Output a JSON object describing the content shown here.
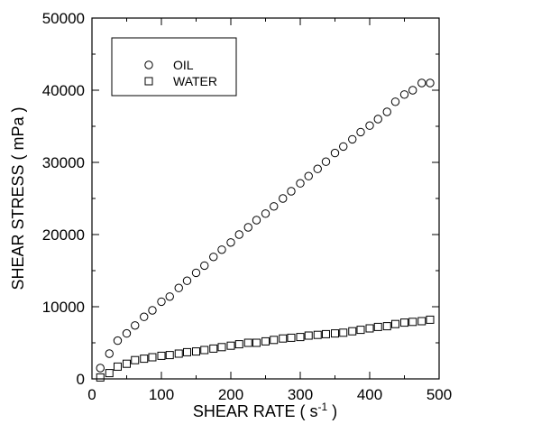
{
  "chart_data": {
    "type": "scatter",
    "xlabel_main": "SHEAR RATE ( s",
    "xlabel_sup": "-1",
    "xlabel_end": " )",
    "ylabel": "SHEAR STRESS ( mPa )",
    "xlim": [
      0,
      500
    ],
    "ylim": [
      0,
      50000
    ],
    "xticks": [
      "0",
      "100",
      "200",
      "300",
      "400",
      "500"
    ],
    "yticks": [
      "0",
      "10000",
      "20000",
      "30000",
      "40000",
      "50000"
    ],
    "grid": false,
    "legend_position": "top-left",
    "series": [
      {
        "name": "OIL",
        "marker": "circle",
        "x": [
          12,
          25,
          37,
          50,
          62,
          75,
          87,
          100,
          112,
          125,
          137,
          150,
          162,
          175,
          187,
          200,
          212,
          225,
          237,
          250,
          262,
          275,
          287,
          300,
          312,
          325,
          337,
          350,
          362,
          375,
          387,
          400,
          412,
          425,
          437,
          450,
          462,
          475,
          487
        ],
        "y": [
          1500,
          3500,
          5300,
          6300,
          7400,
          8600,
          9500,
          10700,
          11400,
          12600,
          13600,
          14700,
          15700,
          16900,
          17900,
          18900,
          20000,
          21000,
          22000,
          22900,
          23900,
          25000,
          26000,
          27100,
          28100,
          29100,
          30100,
          31300,
          32200,
          33200,
          34200,
          35100,
          36000,
          37000,
          38400,
          39400,
          40000,
          41000,
          41000
        ]
      },
      {
        "name": "WATER",
        "marker": "square",
        "x": [
          12,
          25,
          37,
          50,
          62,
          75,
          87,
          100,
          112,
          125,
          137,
          150,
          162,
          175,
          187,
          200,
          212,
          225,
          237,
          250,
          262,
          275,
          287,
          300,
          312,
          325,
          337,
          350,
          362,
          375,
          387,
          400,
          412,
          425,
          437,
          450,
          462,
          475,
          487
        ],
        "y": [
          200,
          800,
          1700,
          2100,
          2600,
          2800,
          3000,
          3200,
          3300,
          3500,
          3700,
          3800,
          4000,
          4200,
          4400,
          4600,
          4800,
          5000,
          5000,
          5200,
          5400,
          5600,
          5700,
          5800,
          6000,
          6100,
          6200,
          6300,
          6400,
          6600,
          6800,
          7000,
          7200,
          7300,
          7600,
          7800,
          7900,
          8000,
          8200
        ]
      }
    ]
  }
}
